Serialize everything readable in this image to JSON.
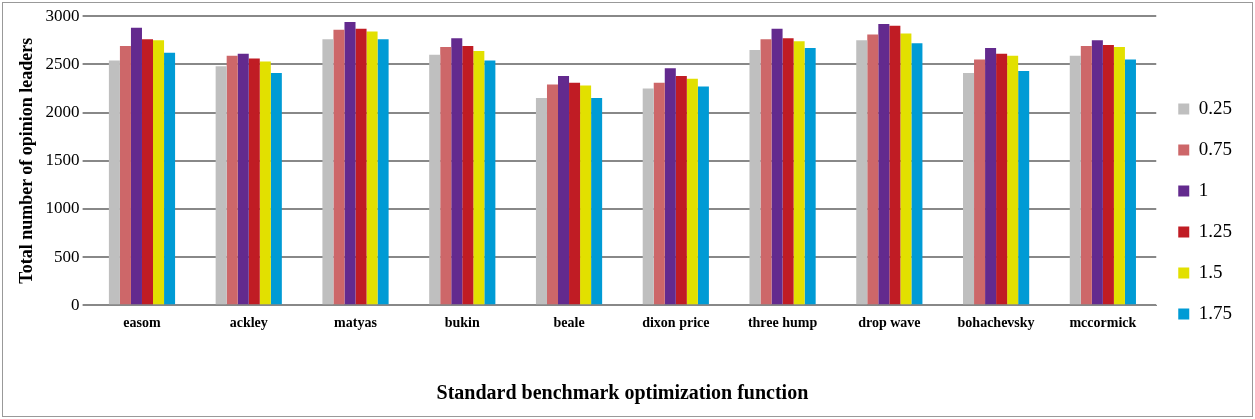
{
  "chart_data": {
    "type": "bar",
    "xlabel": "Standard benchmark optimization function",
    "ylabel": "Total number of opinion leaders",
    "categories": [
      "easom",
      "ackley",
      "matyas",
      "bukin",
      "beale",
      "dixon price",
      "three hump",
      "drop wave",
      "bohachevsky",
      "mccormick"
    ],
    "series": [
      {
        "name": "0.25",
        "color": "#bfbfbf",
        "values": [
          2540,
          2480,
          2760,
          2600,
          2150,
          2250,
          2650,
          2750,
          2410,
          2590
        ]
      },
      {
        "name": "0.75",
        "color": "#cd6769",
        "values": [
          2690,
          2590,
          2860,
          2680,
          2290,
          2310,
          2760,
          2810,
          2550,
          2690
        ]
      },
      {
        "name": "1",
        "color": "#632a8e",
        "values": [
          2880,
          2610,
          2940,
          2770,
          2380,
          2460,
          2870,
          2920,
          2670,
          2750
        ]
      },
      {
        "name": "1.25",
        "color": "#c01c24",
        "values": [
          2760,
          2560,
          2870,
          2690,
          2310,
          2380,
          2770,
          2900,
          2610,
          2700
        ]
      },
      {
        "name": "1.5",
        "color": "#e2e000",
        "values": [
          2750,
          2530,
          2840,
          2640,
          2280,
          2350,
          2740,
          2820,
          2590,
          2680
        ]
      },
      {
        "name": "1.75",
        "color": "#009bd5",
        "values": [
          2620,
          2410,
          2760,
          2540,
          2150,
          2270,
          2670,
          2720,
          2430,
          2550
        ]
      }
    ],
    "ylim": [
      0,
      3000
    ],
    "yticks": [
      0,
      500,
      1000,
      1500,
      2000,
      2500,
      3000
    ],
    "grid": "y",
    "legend": "right"
  }
}
